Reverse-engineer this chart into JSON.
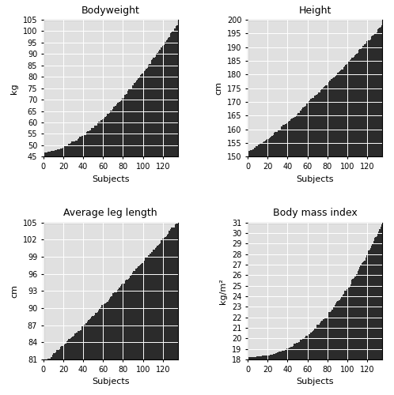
{
  "bodyweight": {
    "title": "Bodyweight",
    "ylabel": "kg",
    "xlabel": "Subjects",
    "ylim": [
      45,
      105
    ],
    "yticks": [
      45,
      50,
      55,
      60,
      65,
      70,
      75,
      80,
      85,
      90,
      95,
      100,
      105
    ],
    "min_val": 46.5,
    "max_val": 103.0,
    "n": 135,
    "power": 1.6
  },
  "height": {
    "title": "Height",
    "ylabel": "cm",
    "xlabel": "Subjects",
    "ylim": [
      150,
      200
    ],
    "yticks": [
      150,
      155,
      160,
      165,
      170,
      175,
      180,
      185,
      190,
      195,
      200
    ],
    "min_val": 152.0,
    "max_val": 198.0,
    "n": 135,
    "power": 1.2
  },
  "avg_leg": {
    "title": "Average leg length",
    "ylabel": "cm",
    "xlabel": "Subjects",
    "ylim": [
      81,
      105
    ],
    "yticks": [
      81,
      84,
      87,
      90,
      93,
      96,
      99,
      102,
      105
    ],
    "min_val": 80.5,
    "max_val": 105.0,
    "n": 135,
    "power": 1.1
  },
  "bmi": {
    "title": "Body mass index",
    "ylabel": "kg/m²",
    "xlabel": "Subjects",
    "ylim": [
      18,
      31
    ],
    "yticks": [
      18,
      19,
      20,
      21,
      22,
      23,
      24,
      25,
      26,
      27,
      28,
      29,
      30,
      31
    ],
    "min_val": 18.2,
    "max_val": 30.8,
    "n": 135,
    "power": 2.2
  },
  "bar_color": "#2b2b2b",
  "grid_color": "white",
  "bg_color": "#e0e0e0",
  "xticks": [
    0,
    20,
    40,
    60,
    80,
    100,
    120
  ],
  "figsize": [
    4.98,
    5.0
  ],
  "dpi": 100,
  "title_fontsize": 9,
  "label_fontsize": 8,
  "tick_fontsize": 7
}
